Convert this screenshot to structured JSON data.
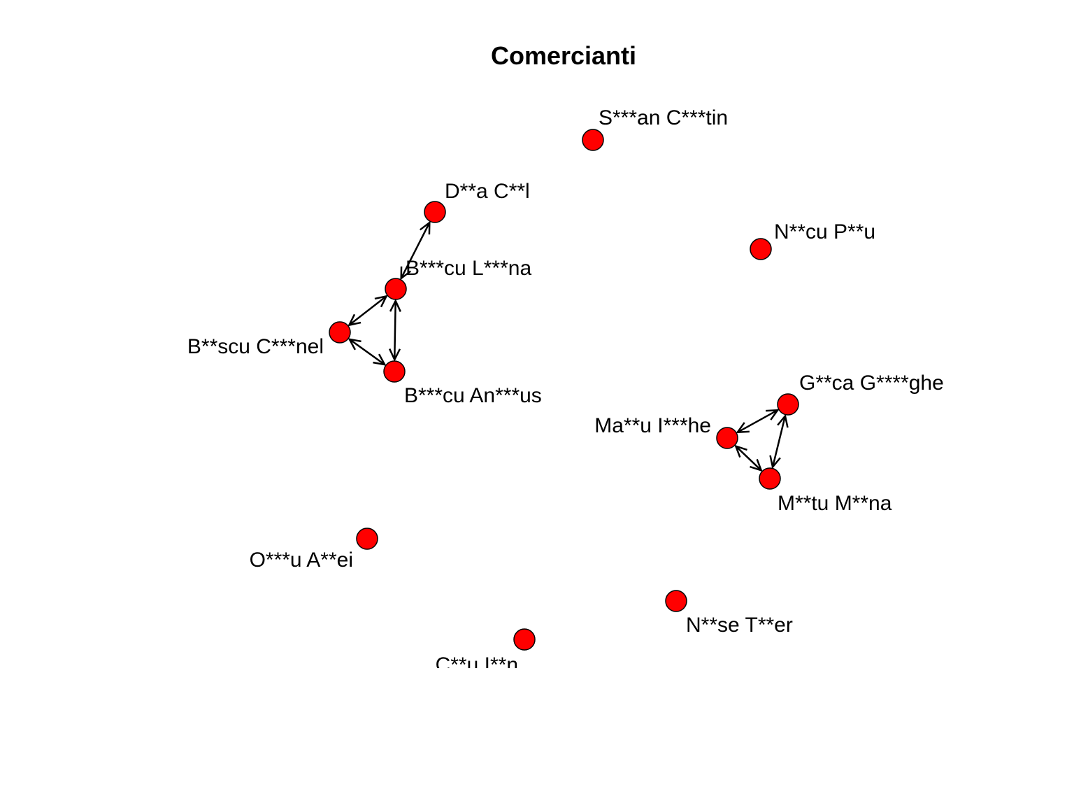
{
  "title": "Comercianti",
  "colors": {
    "node_fill": "#ff0000",
    "node_stroke": "#000000",
    "edge": "#000000"
  },
  "nodes": [
    {
      "id": "stefan",
      "label": "S***an C***tin"
    },
    {
      "id": "dana",
      "label": "D**a C**l"
    },
    {
      "id": "nicu",
      "label": "N**cu P**u"
    },
    {
      "id": "l",
      "label": "B***cu L***na"
    },
    {
      "id": "bc",
      "label": "B**scu C***nel"
    },
    {
      "id": "ba",
      "label": "B***cu An***us"
    },
    {
      "id": "g",
      "label": "G**ca G****ghe"
    },
    {
      "id": "mi",
      "label": "Ma**u I***he"
    },
    {
      "id": "mm",
      "label": "M**tu M**na"
    },
    {
      "id": "o",
      "label": "O***u A**ei"
    },
    {
      "id": "n",
      "label": "N**se T**er"
    },
    {
      "id": "c",
      "label": "C**u I**n"
    }
  ],
  "edges": [
    {
      "from": "l",
      "to": "dana",
      "directed": "both"
    },
    {
      "from": "l",
      "to": "bc",
      "directed": "both"
    },
    {
      "from": "l",
      "to": "ba",
      "directed": "both"
    },
    {
      "from": "bc",
      "to": "ba",
      "directed": "both"
    },
    {
      "from": "g",
      "to": "mi",
      "directed": "both"
    },
    {
      "from": "g",
      "to": "mm",
      "directed": "both"
    },
    {
      "from": "mi",
      "to": "mm",
      "directed": "both"
    }
  ]
}
